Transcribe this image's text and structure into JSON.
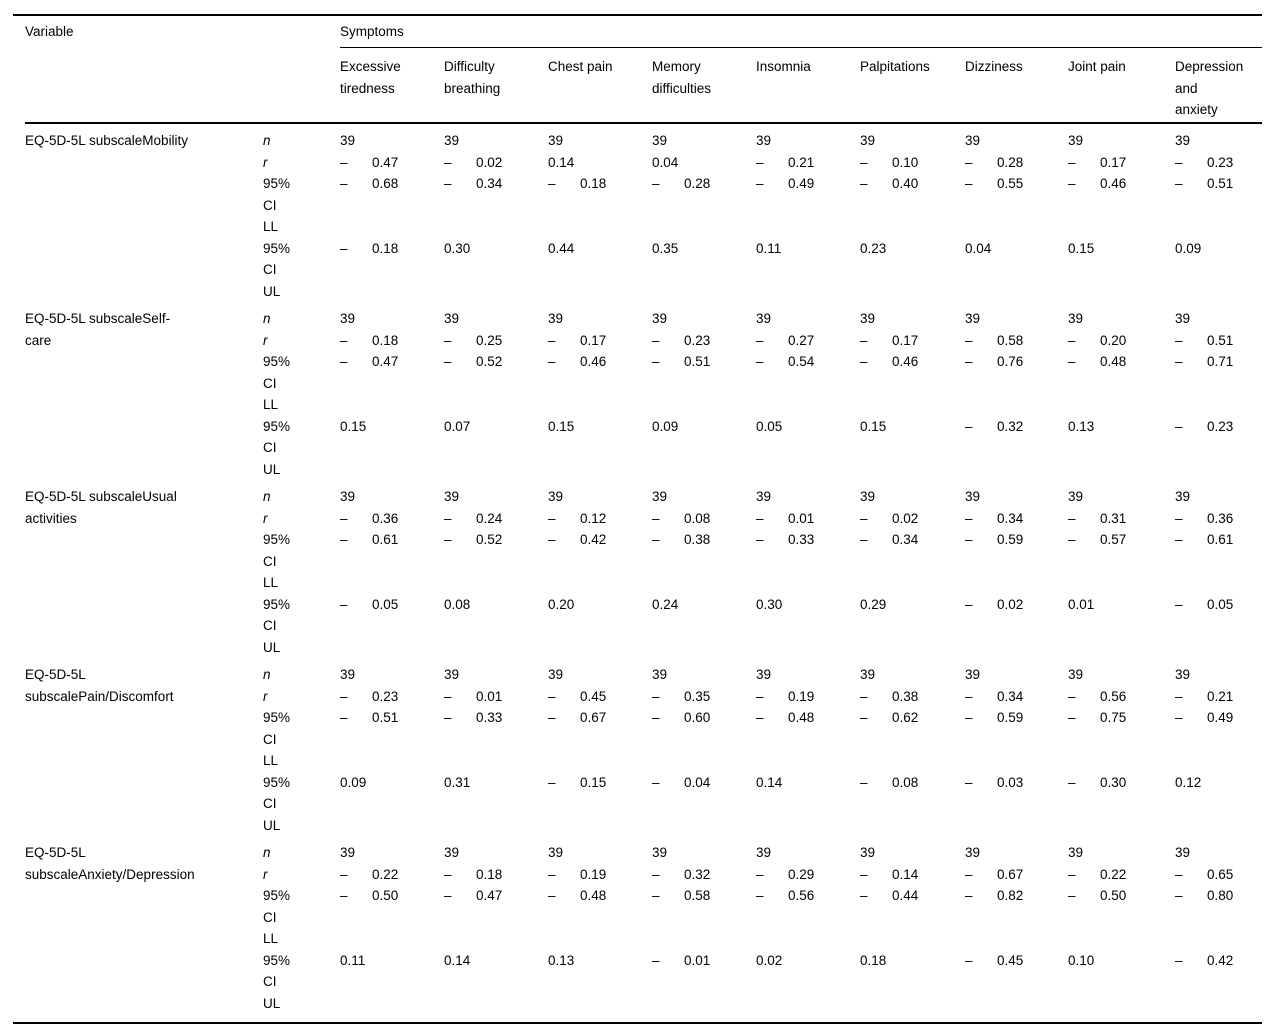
{
  "page": {
    "background": "#ffffff",
    "text_color": "#000000",
    "rule_color": "#000000"
  },
  "table": {
    "corner_header": "Variable",
    "group_header": "Symptoms",
    "columns": [
      {
        "label": "Excessive tiredness",
        "lines": [
          "Excessive",
          "tiredness"
        ]
      },
      {
        "label": "Difficulty breathing",
        "lines": [
          "Difficulty",
          "breathing"
        ]
      },
      {
        "label": "Chest pain",
        "lines": [
          "Chest pain"
        ]
      },
      {
        "label": "Memory difficulties",
        "lines": [
          "Memory",
          "difficulties"
        ]
      },
      {
        "label": "Insomnia",
        "lines": [
          "Insomnia"
        ]
      },
      {
        "label": "Palpitations",
        "lines": [
          "Palpitations"
        ]
      },
      {
        "label": "Dizziness",
        "lines": [
          "Dizziness"
        ]
      },
      {
        "label": "Joint pain",
        "lines": [
          "Joint pain"
        ]
      },
      {
        "label": "Depression and anxiety",
        "lines": [
          "Depression",
          "and",
          "anxiety"
        ]
      }
    ],
    "stat_rows": [
      {
        "key": "n",
        "label_lines": [
          "n"
        ],
        "italic": true
      },
      {
        "key": "r",
        "label_lines": [
          "r"
        ],
        "italic": true
      },
      {
        "key": "ci_ll",
        "label_lines": [
          "95%",
          "CI",
          "LL"
        ],
        "italic": false
      },
      {
        "key": "ci_ul",
        "label_lines": [
          "95%",
          "CI",
          "UL"
        ],
        "italic": false
      }
    ],
    "blocks": [
      {
        "variable": "EQ-5D-5L subscaleMobility",
        "variable_lines": [
          "EQ-5D-5L subscaleMobility"
        ],
        "n": [
          "39",
          "39",
          "39",
          "39",
          "39",
          "39",
          "39",
          "39",
          "39"
        ],
        "r": [
          "-0.47",
          "-0.02",
          "0.14",
          "0.04",
          "-0.21",
          "-0.10",
          "-0.28",
          "-0.17",
          "-0.23"
        ],
        "ci_ll": [
          "-0.68",
          "-0.34",
          "-0.18",
          "-0.28",
          "-0.49",
          "-0.40",
          "-0.55",
          "-0.46",
          "-0.51"
        ],
        "ci_ul": [
          "-0.18",
          "0.30",
          "0.44",
          "0.35",
          "0.11",
          "0.23",
          "0.04",
          "0.15",
          "0.09"
        ]
      },
      {
        "variable": "EQ-5D-5L subscaleSelf-care",
        "variable_lines": [
          "EQ-5D-5L subscaleSelf-",
          "care"
        ],
        "n": [
          "39",
          "39",
          "39",
          "39",
          "39",
          "39",
          "39",
          "39",
          "39"
        ],
        "r": [
          "-0.18",
          "-0.25",
          "-0.17",
          "-0.23",
          "-0.27",
          "-0.17",
          "-0.58",
          "-0.20",
          "-0.51"
        ],
        "ci_ll": [
          "-0.47",
          "-0.52",
          "-0.46",
          "-0.51",
          "-0.54",
          "-0.46",
          "-0.76",
          "-0.48",
          "-0.71"
        ],
        "ci_ul": [
          "0.15",
          "0.07",
          "0.15",
          "0.09",
          "0.05",
          "0.15",
          "-0.32",
          "0.13",
          "-0.23"
        ]
      },
      {
        "variable": "EQ-5D-5L subscaleUsual activities",
        "variable_lines": [
          "EQ-5D-5L subscaleUsual",
          "activities"
        ],
        "n": [
          "39",
          "39",
          "39",
          "39",
          "39",
          "39",
          "39",
          "39",
          "39"
        ],
        "r": [
          "-0.36",
          "-0.24",
          "-0.12",
          "-0.08",
          "-0.01",
          "-0.02",
          "-0.34",
          "-0.31",
          "-0.36"
        ],
        "ci_ll": [
          "-0.61",
          "-0.52",
          "-0.42",
          "-0.38",
          "-0.33",
          "-0.34",
          "-0.59",
          "-0.57",
          "-0.61"
        ],
        "ci_ul": [
          "-0.05",
          "0.08",
          "0.20",
          "0.24",
          "0.30",
          "0.29",
          "-0.02",
          "0.01",
          "-0.05"
        ]
      },
      {
        "variable": "EQ-5D-5L subscalePain/Discomfort",
        "variable_lines": [
          "EQ-5D-5L",
          "subscalePain/Discomfort"
        ],
        "n": [
          "39",
          "39",
          "39",
          "39",
          "39",
          "39",
          "39",
          "39",
          "39"
        ],
        "r": [
          "-0.23",
          "-0.01",
          "-0.45",
          "-0.35",
          "-0.19",
          "-0.38",
          "-0.34",
          "-0.56",
          "-0.21"
        ],
        "ci_ll": [
          "-0.51",
          "-0.33",
          "-0.67",
          "-0.60",
          "-0.48",
          "-0.62",
          "-0.59",
          "-0.75",
          "-0.49"
        ],
        "ci_ul": [
          "0.09",
          "0.31",
          "-0.15",
          "-0.04",
          "0.14",
          "-0.08",
          "-0.03",
          "-0.30",
          "0.12"
        ]
      },
      {
        "variable": "EQ-5D-5L subscaleAnxiety/Depression",
        "variable_lines": [
          "EQ-5D-5L",
          "subscaleAnxiety/Depression"
        ],
        "n": [
          "39",
          "39",
          "39",
          "39",
          "39",
          "39",
          "39",
          "39",
          "39"
        ],
        "r": [
          "-0.22",
          "-0.18",
          "-0.19",
          "-0.32",
          "-0.29",
          "-0.14",
          "-0.67",
          "-0.22",
          "-0.65"
        ],
        "ci_ll": [
          "-0.50",
          "-0.47",
          "-0.48",
          "-0.58",
          "-0.56",
          "-0.44",
          "-0.82",
          "-0.50",
          "-0.80"
        ],
        "ci_ul": [
          "0.11",
          "0.14",
          "0.13",
          "-0.01",
          "0.02",
          "0.18",
          "-0.45",
          "0.10",
          "-0.42"
        ]
      }
    ]
  }
}
